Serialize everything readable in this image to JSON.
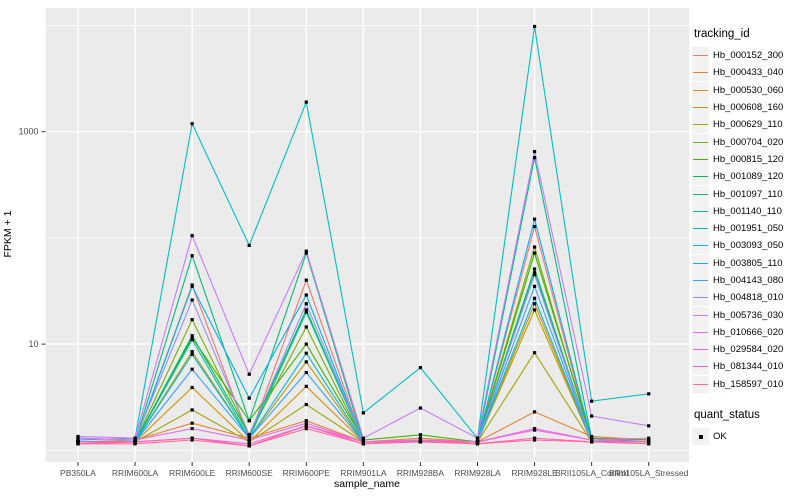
{
  "figure": {
    "background": "#FFFFFF",
    "panel_background": "#EBEBEB",
    "gridline_color": "#FFFFFF",
    "point_color": "#000000",
    "axis_text_color": "#4D4D4D",
    "tick_color": "#333333"
  },
  "chart_data": {
    "type": "line",
    "title": "",
    "xlabel": "sample_name",
    "ylabel": "FPKM + 1",
    "y_scale": "log10",
    "y_ticks": [
      1000,
      10
    ],
    "y_minor_gridlines": [
      10000,
      100,
      1
    ],
    "ylim": [
      0.78,
      14500
    ],
    "grid": true,
    "legend_position": "right",
    "legend_title": "tracking_id",
    "quant_legend_title": "quant_status",
    "quant_legend_value": "OK",
    "categories": [
      "PB350LA",
      "RRIM600LA",
      "RRIM600LE",
      "RRIM600SE",
      "RRIM600PE",
      "RRIM901LA",
      "RRIM928BA",
      "RRIM928LA",
      "RRIM928LE",
      "BRII105LA_Control",
      "BRII105LA_Stressed"
    ],
    "series": [
      {
        "name": "Hb_000152_300",
        "color": "#F8766D",
        "values": [
          1.2,
          1.2,
          36,
          1.3,
          40,
          1.2,
          1.2,
          1.2,
          128,
          1.2,
          1.2
        ]
      },
      {
        "name": "Hb_000433_040",
        "color": "#EA8331",
        "values": [
          1.2,
          1.25,
          1.8,
          1.3,
          1.9,
          1.2,
          1.3,
          1.2,
          2.3,
          1.35,
          1.25
        ]
      },
      {
        "name": "Hb_000530_060",
        "color": "#D89000",
        "values": [
          1.2,
          1.2,
          3.9,
          1.2,
          4.0,
          1.2,
          1.2,
          1.2,
          24,
          1.2,
          1.2
        ]
      },
      {
        "name": "Hb_000608_160",
        "color": "#C09B00",
        "values": [
          1.2,
          1.2,
          8.5,
          1.3,
          6.8,
          1.2,
          1.2,
          1.2,
          21,
          1.2,
          1.2
        ]
      },
      {
        "name": "Hb_000629_110",
        "color": "#A3A500",
        "values": [
          1.15,
          1.2,
          2.4,
          1.2,
          2.7,
          1.2,
          1.2,
          1.2,
          8.3,
          1.2,
          1.2
        ]
      },
      {
        "name": "Hb_000704_020",
        "color": "#7CAE00",
        "values": [
          1.2,
          1.2,
          17,
          1.4,
          14.5,
          1.2,
          1.2,
          1.2,
          82,
          1.2,
          1.2
        ]
      },
      {
        "name": "Hb_000815_120",
        "color": "#39B600",
        "values": [
          1.2,
          1.2,
          11.5,
          1.9,
          10,
          1.25,
          1.4,
          1.2,
          72,
          1.3,
          1.25
        ]
      },
      {
        "name": "Hb_001089_120",
        "color": "#00BB4E",
        "values": [
          1.2,
          1.2,
          12,
          1.4,
          21,
          1.2,
          1.2,
          1.2,
          51,
          1.2,
          1.2
        ]
      },
      {
        "name": "Hb_001097_110",
        "color": "#00BF7D",
        "values": [
          1.2,
          1.2,
          68,
          1.9,
          72,
          1.2,
          1.2,
          1.2,
          570,
          1.3,
          1.2
        ]
      },
      {
        "name": "Hb_001140_110",
        "color": "#00C1A3",
        "values": [
          1.2,
          1.2,
          11,
          1.3,
          20,
          1.2,
          1.2,
          1.2,
          47,
          1.2,
          1.2
        ]
      },
      {
        "name": "Hb_001951_050",
        "color": "#00BFC4",
        "values": [
          1.25,
          1.3,
          1190,
          85,
          1900,
          2.25,
          6,
          1.3,
          9800,
          2.9,
          3.4
        ]
      },
      {
        "name": "Hb_003093_050",
        "color": "#00BAE0",
        "values": [
          1.2,
          1.2,
          8,
          1.3,
          8.2,
          1.2,
          1.2,
          1.2,
          27,
          1.2,
          1.2
        ]
      },
      {
        "name": "Hb_003805_110",
        "color": "#00B0F6",
        "values": [
          1.2,
          1.2,
          35,
          3.1,
          29,
          1.2,
          1.2,
          1.2,
          150,
          1.25,
          1.2
        ]
      },
      {
        "name": "Hb_004143_080",
        "color": "#35A2FF",
        "values": [
          1.2,
          1.2,
          5.8,
          1.3,
          5.4,
          1.2,
          1.2,
          1.2,
          35,
          1.2,
          1.2
        ]
      },
      {
        "name": "Hb_004818_010",
        "color": "#9590FF",
        "values": [
          1.3,
          1.25,
          26,
          1.4,
          24,
          1.2,
          1.2,
          1.2,
          45,
          1.2,
          1.2
        ]
      },
      {
        "name": "Hb_005736_030",
        "color": "#C77CFF",
        "values": [
          1.35,
          1.3,
          105,
          5.2,
          75,
          1.3,
          2.5,
          1.3,
          650,
          2.1,
          1.7
        ]
      },
      {
        "name": "Hb_010666_020",
        "color": "#E76BF3",
        "values": [
          1.3,
          1.25,
          1.6,
          1.25,
          1.8,
          1.2,
          1.25,
          1.2,
          1.6,
          1.25,
          1.3
        ]
      },
      {
        "name": "Hb_029584_020",
        "color": "#FA62DB",
        "values": [
          1.2,
          1.2,
          1.3,
          1.15,
          1.7,
          1.2,
          1.25,
          1.2,
          1.55,
          1.25,
          1.2
        ]
      },
      {
        "name": "Hb_081344_010",
        "color": "#FF62BC",
        "values": [
          1.15,
          1.2,
          1.3,
          1.1,
          1.7,
          1.15,
          1.25,
          1.15,
          1.3,
          1.2,
          1.2
        ]
      },
      {
        "name": "Hb_158597_010",
        "color": "#FF6A98",
        "values": [
          1.15,
          1.15,
          1.25,
          1.1,
          1.6,
          1.15,
          1.2,
          1.15,
          1.25,
          1.2,
          1.15
        ]
      }
    ]
  }
}
